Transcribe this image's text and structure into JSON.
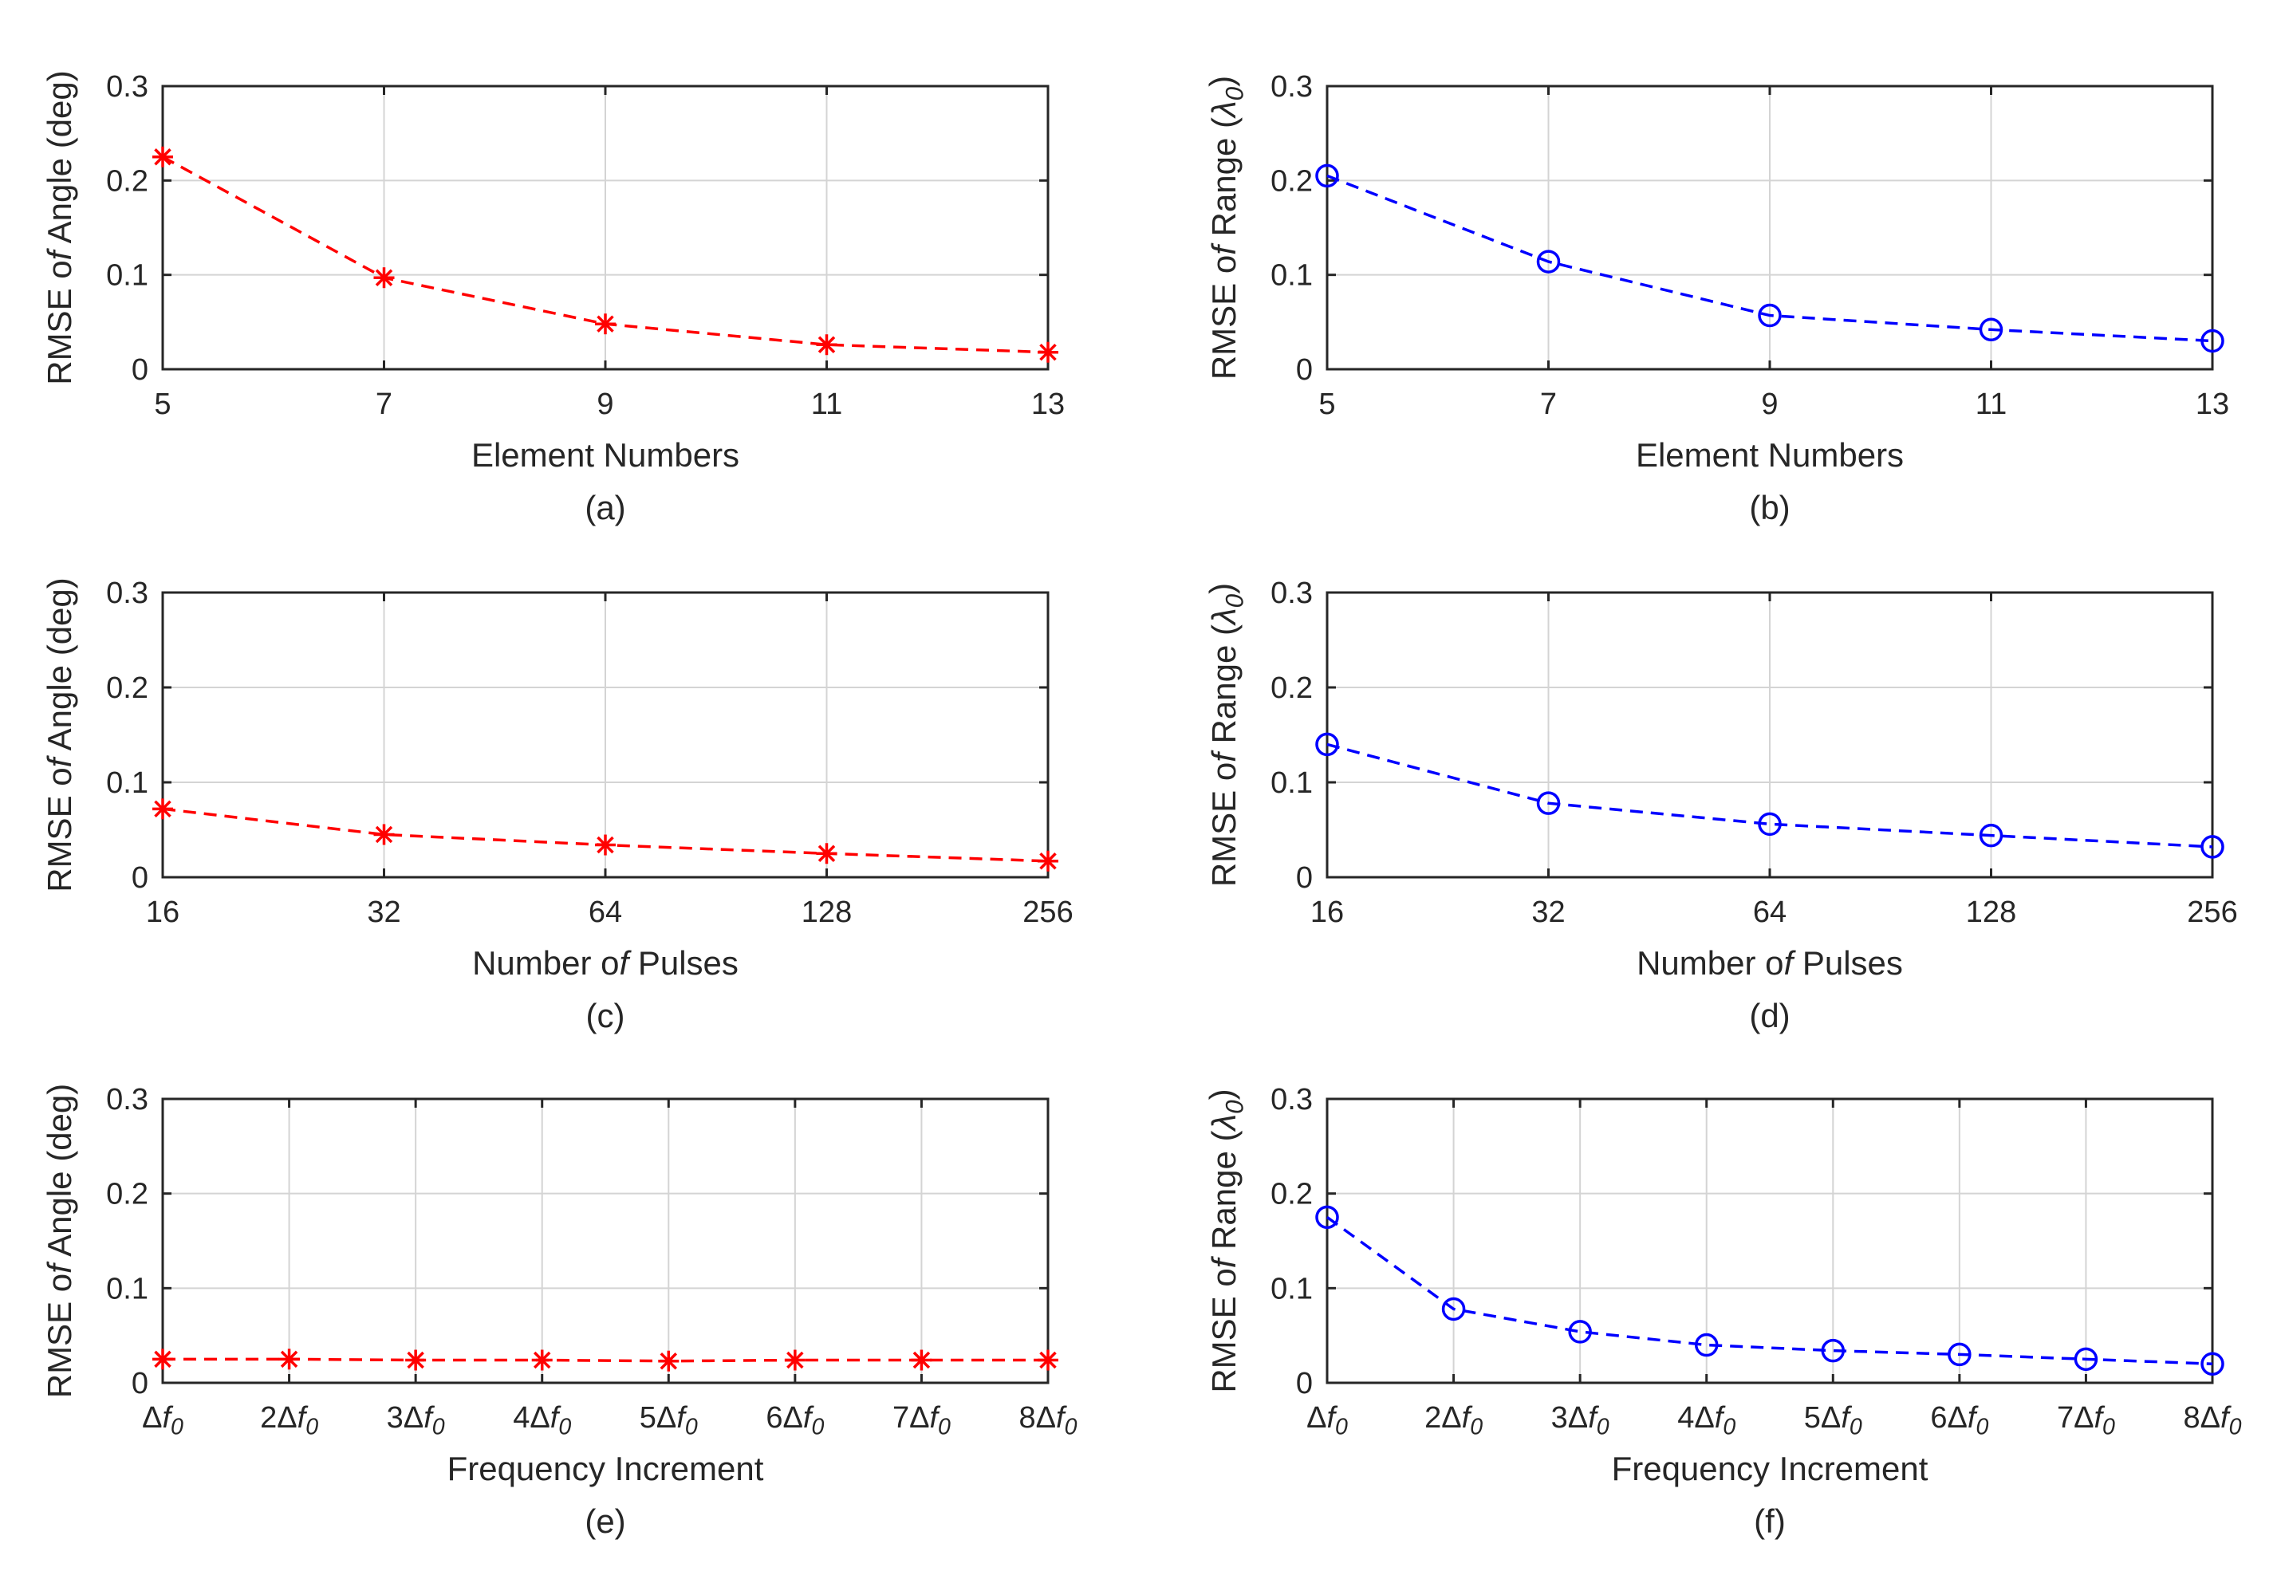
{
  "chart_data": [
    {
      "type": "line",
      "caption": "(a)",
      "xlabel": "Element Numbers",
      "ylabel": "RMSE of Angle (deg)",
      "categories": [
        "5",
        "7",
        "9",
        "11",
        "13"
      ],
      "values": [
        0.225,
        0.097,
        0.048,
        0.026,
        0.018
      ],
      "ylim": [
        0,
        0.3
      ],
      "yticks": [
        "0",
        "0.1",
        "0.2",
        "0.3"
      ],
      "grid": true,
      "color": "#ff0000",
      "marker": "asterisk"
    },
    {
      "type": "line",
      "caption": "(b)",
      "xlabel": "Element Numbers",
      "ylabel": "RMSE of Range (λ0)",
      "categories": [
        "5",
        "7",
        "9",
        "11",
        "13"
      ],
      "values": [
        0.205,
        0.114,
        0.057,
        0.042,
        0.03
      ],
      "ylim": [
        0,
        0.3
      ],
      "yticks": [
        "0",
        "0.1",
        "0.2",
        "0.3"
      ],
      "grid": true,
      "color": "#0000ff",
      "marker": "circle"
    },
    {
      "type": "line",
      "caption": "(c)",
      "xlabel": "Number of Pulses",
      "ylabel": "RMSE of Angle (deg)",
      "categories": [
        "16",
        "32",
        "64",
        "128",
        "256"
      ],
      "values": [
        0.072,
        0.045,
        0.034,
        0.025,
        0.017
      ],
      "ylim": [
        0,
        0.3
      ],
      "yticks": [
        "0",
        "0.1",
        "0.2",
        "0.3"
      ],
      "grid": true,
      "color": "#ff0000",
      "marker": "asterisk"
    },
    {
      "type": "line",
      "caption": "(d)",
      "xlabel": "Number of Pulses",
      "ylabel": "RMSE of Range (λ0)",
      "categories": [
        "16",
        "32",
        "64",
        "128",
        "256"
      ],
      "values": [
        0.14,
        0.078,
        0.056,
        0.044,
        0.032
      ],
      "ylim": [
        0,
        0.3
      ],
      "yticks": [
        "0",
        "0.1",
        "0.2",
        "0.3"
      ],
      "grid": true,
      "color": "#0000ff",
      "marker": "circle"
    },
    {
      "type": "line",
      "caption": "(e)",
      "xlabel": "Frequency Increment",
      "ylabel": "RMSE of Angle (deg)",
      "categories": [
        "Δf0",
        "2Δf0",
        "3Δf0",
        "4Δf0",
        "5Δf0",
        "6Δf0",
        "7Δf0",
        "8Δf0"
      ],
      "values": [
        0.025,
        0.025,
        0.024,
        0.024,
        0.023,
        0.024,
        0.024,
        0.024
      ],
      "ylim": [
        0,
        0.3
      ],
      "yticks": [
        "0",
        "0.1",
        "0.2",
        "0.3"
      ],
      "grid": true,
      "color": "#ff0000",
      "marker": "asterisk"
    },
    {
      "type": "line",
      "caption": "(f)",
      "xlabel": "Frequency Increment",
      "ylabel": "RMSE of Range (λ0)",
      "categories": [
        "Δf0",
        "2Δf0",
        "3Δf0",
        "4Δf0",
        "5Δf0",
        "6Δf0",
        "7Δf0",
        "8Δf0"
      ],
      "values": [
        0.175,
        0.078,
        0.054,
        0.04,
        0.034,
        0.03,
        0.025,
        0.02
      ],
      "ylim": [
        0,
        0.3
      ],
      "yticks": [
        "0",
        "0.1",
        "0.2",
        "0.3"
      ],
      "grid": true,
      "color": "#0000ff",
      "marker": "circle"
    }
  ]
}
